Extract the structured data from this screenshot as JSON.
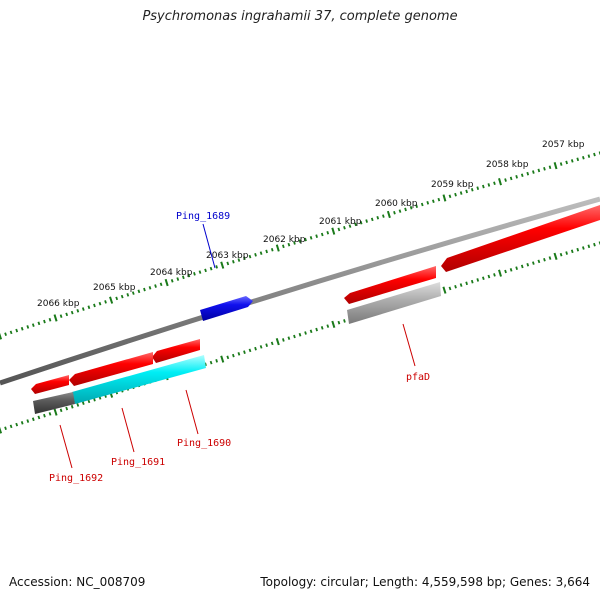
{
  "title": "Psychromonas ingrahamii 37, complete genome",
  "footer": {
    "accession": "Accession: NC_008709",
    "stats": "Topology: circular; Length: 4,559,598 bp; Genes: 3,664"
  },
  "colors": {
    "backbone": "#8a8a8a",
    "ticks": "#1a7a1a",
    "forward_gene": "#e00000",
    "reverse_gene": "#e00000",
    "highlight_gene": "#1515e0",
    "cyan_gene": "#00e8f0",
    "gray_gene": "#aaaaaa",
    "dark_gene": "#555555",
    "label_red": "#cc0000",
    "label_blue": "#0000cc"
  },
  "tick_labels": [
    "2057 kbp",
    "2058 kbp",
    "2059 kbp",
    "2060 kbp",
    "2061 kbp",
    "2062 kbp",
    "2063 kbp",
    "2064 kbp",
    "2065 kbp",
    "2066 kbp"
  ],
  "gene_labels": {
    "ping_1689": "Ping_1689",
    "pfad": "pfaD",
    "ping_1690": "Ping_1690",
    "ping_1691": "Ping_1691",
    "ping_1692": "Ping_1692"
  }
}
